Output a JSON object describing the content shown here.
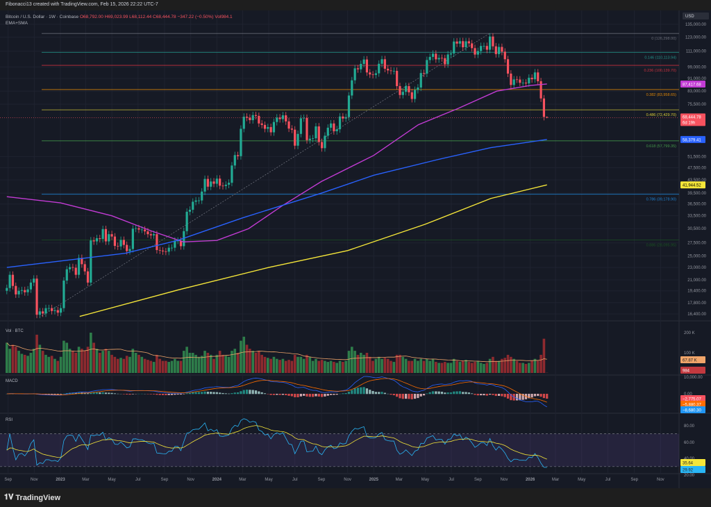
{
  "header": {
    "credit": "Fibonacci13 created with TradingView.com, Feb 15, 2026 22:22 UTC-7"
  },
  "legend": {
    "symbol": "Bitcoin / U.S. Dollar · 1W · Coinbase",
    "open": "O68,792.00",
    "high": "H69,023.99",
    "low": "L68,112.44",
    "close": "C68,444.78",
    "change": "−347.22 (−0.50%)",
    "volume": "Vol984.1",
    "indicators": "EMA+SMA"
  },
  "footer": {
    "brand": "TradingView"
  },
  "chart_data": {
    "type": "candlestick",
    "currency": "USD",
    "scale": "log",
    "ylim": [
      16000,
      140000
    ],
    "interval": "1W",
    "first_week": "2022-08-29",
    "x_tick_labels": [
      "Sep",
      "Nov",
      "2023",
      "Mar",
      "May",
      "Jul",
      "Sep",
      "Nov",
      "2024",
      "Mar",
      "May",
      "Jul",
      "Sep",
      "Nov",
      "2025",
      "Mar",
      "May",
      "Jul",
      "Sep",
      "Nov",
      "2026",
      "Mar",
      "May",
      "Jul",
      "Sep",
      "Nov"
    ],
    "y_ticks": [
      135000,
      123000,
      111000,
      99000,
      91000,
      83000,
      75500,
      51500,
      47500,
      43500,
      39500,
      36500,
      33500,
      30500,
      27500,
      25000,
      23000,
      21000,
      19400,
      17800,
      16400
    ],
    "y_tick_labels": [
      "135,000.00",
      "123,000.00",
      "111,000.00",
      "99,000.00",
      "91,000.00",
      "83,000.00",
      "75,500.00",
      "51,500.00",
      "47,500.00",
      "43,500.00",
      "39,500.00",
      "36,500.00",
      "33,500.00",
      "30,500.00",
      "27,500.00",
      "25,000.00",
      "23,000.00",
      "21,000.00",
      "19,400.00",
      "17,800.00",
      "16,400.00"
    ],
    "weekly_closes": [
      19800,
      21800,
      20100,
      18900,
      19400,
      19500,
      19200,
      19600,
      20600,
      21200,
      16300,
      16700,
      16450,
      17100,
      17100,
      16750,
      16850,
      16550,
      17100,
      20900,
      22700,
      23050,
      22950,
      21800,
      24650,
      23550,
      22350,
      20600,
      28000,
      27800,
      28450,
      28300,
      30400,
      27800,
      29300,
      28800,
      26900,
      26800,
      28100,
      27100,
      25900,
      26300,
      30500,
      30600,
      30300,
      30300,
      29900,
      29300,
      29050,
      29300,
      26100,
      26000,
      25850,
      25800,
      26550,
      26550,
      27950,
      27950,
      26850,
      29950,
      34500,
      35000,
      37100,
      37450,
      37450,
      39950,
      43800,
      41400,
      43000,
      42300,
      43900,
      41700,
      41600,
      42000,
      42600,
      48300,
      52100,
      51700,
      63100,
      68900,
      68400,
      67200,
      69700,
      69300,
      65600,
      64900,
      63100,
      63900,
      61500,
      66300,
      68500,
      67700,
      69600,
      66600,
      63200,
      62700,
      55800,
      60800,
      68100,
      68300,
      58100,
      58700,
      58900,
      64200,
      57300,
      54800,
      60000,
      63600,
      65600,
      62000,
      62900,
      69000,
      68000,
      68700,
      80400,
      89800,
      98000,
      97300,
      101200,
      104500,
      95100,
      93700,
      93400,
      94500,
      101300,
      104700,
      97700,
      96500,
      96100,
      96200,
      86100,
      80700,
      82600,
      86100,
      82300,
      78400,
      83700,
      85200,
      94700,
      94300,
      104100,
      106500,
      109000,
      104600,
      105700,
      105500,
      100900,
      108400,
      109200,
      119100,
      117300,
      119400,
      114200,
      119300,
      117500,
      113500,
      108300,
      111100,
      115300,
      115300,
      112200,
      123500,
      115000,
      108700,
      114500,
      110600,
      104700,
      94300,
      86800,
      90400,
      90300,
      88200,
      88300,
      87800,
      91500,
      90500,
      95100,
      89200,
      78700,
      68792,
      68444.78
    ],
    "last_candle": {
      "open": 68792.0,
      "high": 69023.99,
      "low": 68112.44,
      "close": 68444.78
    },
    "weekly_volume_k": [
      150,
      120,
      140,
      130,
      110,
      95,
      90,
      85,
      100,
      120,
      190,
      140,
      110,
      90,
      80,
      85,
      70,
      60,
      80,
      160,
      150,
      120,
      110,
      100,
      130,
      120,
      110,
      130,
      200,
      150,
      120,
      100,
      110,
      120,
      110,
      90,
      80,
      70,
      75,
      70,
      85,
      80,
      120,
      100,
      90,
      80,
      70,
      65,
      60,
      55,
      90,
      70,
      60,
      60,
      55,
      60,
      70,
      60,
      60,
      110,
      130,
      100,
      100,
      90,
      80,
      85,
      110,
      100,
      90,
      70,
      90,
      110,
      90,
      85,
      80,
      110,
      120,
      100,
      160,
      180,
      140,
      120,
      110,
      100,
      110,
      90,
      80,
      75,
      70,
      80,
      70,
      65,
      70,
      60,
      65,
      60,
      90,
      80,
      80,
      70,
      90,
      80,
      60,
      70,
      60,
      65,
      60,
      55,
      60,
      55,
      50,
      60,
      55,
      60,
      110,
      130,
      110,
      90,
      100,
      90,
      100,
      80,
      60,
      70,
      80,
      70,
      75,
      70,
      60,
      55,
      90,
      90,
      80,
      70,
      60,
      60,
      70,
      60,
      70,
      60,
      70,
      60,
      70,
      55,
      50,
      50,
      55,
      50,
      50,
      70,
      60,
      55,
      60,
      65,
      55,
      50,
      55,
      60,
      50,
      45,
      50,
      70,
      80,
      60,
      60,
      70,
      75,
      90,
      80,
      70,
      60,
      50,
      50,
      45,
      50,
      60,
      70,
      60,
      90,
      170,
      0.98
    ],
    "moving_averages": [
      {
        "color": "#c23bd4",
        "last": "87,417.68",
        "points": [
          [
            "2022-08-29",
            38500
          ],
          [
            "2023-01-01",
            36800
          ],
          [
            "2023-05-01",
            33500
          ],
          [
            "2023-08-01",
            30000
          ],
          [
            "2023-10-15",
            27700
          ],
          [
            "2024-01-01",
            28000
          ],
          [
            "2024-03-15",
            30500
          ],
          [
            "2024-06-01",
            36000
          ],
          [
            "2024-09-01",
            43000
          ],
          [
            "2025-01-01",
            52000
          ],
          [
            "2025-04-15",
            65000
          ],
          [
            "2025-07-15",
            73000
          ],
          [
            "2025-10-15",
            83000
          ],
          [
            "2026-01-01",
            86500
          ],
          [
            "2026-02-09",
            87417.68
          ]
        ]
      },
      {
        "color": "#2962ff",
        "last": "58,379.41",
        "points": [
          [
            "2022-08-29",
            23000
          ],
          [
            "2023-06-01",
            25500
          ],
          [
            "2023-10-01",
            28000
          ],
          [
            "2024-03-01",
            33000
          ],
          [
            "2024-09-01",
            39500
          ],
          [
            "2025-01-01",
            45000
          ],
          [
            "2025-06-01",
            50500
          ],
          [
            "2025-10-01",
            55000
          ],
          [
            "2026-02-09",
            58379.41
          ]
        ]
      },
      {
        "color": "#f5e639",
        "last": "41,944.52",
        "points": [
          [
            "2023-02-15",
            16100
          ],
          [
            "2023-10-01",
            19500
          ],
          [
            "2024-05-01",
            23000
          ],
          [
            "2024-11-01",
            26000
          ],
          [
            "2025-05-01",
            31500
          ],
          [
            "2025-10-01",
            38000
          ],
          [
            "2026-02-09",
            41944.52
          ]
        ]
      }
    ],
    "fibonacci": [
      {
        "label": "0 (126,298.00)",
        "value": 126298,
        "color": "#787b86"
      },
      {
        "label": "0.146 (110,113.94)",
        "value": 110113.94,
        "color": "#26a69a"
      },
      {
        "label": "0.236 (100,139.70)",
        "value": 100139.7,
        "color": "#f23645"
      },
      {
        "label": "0.382 (83,958.65)",
        "value": 83958.65,
        "color": "#ff9800"
      },
      {
        "label": "0.486 (72,429.70)",
        "value": 72429.7,
        "color": "#f5e639"
      },
      {
        "label": "0.618 (57,799.35)",
        "value": 57799.35,
        "color": "#4caf50"
      },
      {
        "label": "0.786 (39,178.90)",
        "value": 39178.9,
        "color": "#2196f3"
      },
      {
        "label": "0.886 (28,095.95)",
        "value": 28095.95,
        "color": "#1b5e20"
      }
    ],
    "price_label": {
      "value": "68,444.78",
      "countdown": "6d 19h",
      "color": "#f7525f"
    },
    "volume_pane": {
      "title": "Vol · BTC",
      "ticks": [
        "200 K",
        "100 K"
      ],
      "ma_label": "67.87 K",
      "vol_label": "984"
    },
    "macd_pane": {
      "title": "MACD",
      "ticks": [
        "10,000.00",
        "0.00"
      ],
      "labels": [
        {
          "text": "−2,775.07",
          "color": "#f7525f"
        },
        {
          "text": "−5,880.37",
          "color": "#ff6d00"
        },
        {
          "text": "−8,680.30",
          "color": "#2196f3"
        }
      ]
    },
    "rsi_pane": {
      "title": "RSI",
      "ticks": [
        "80.00",
        "60.00",
        "40.00",
        "20.00"
      ],
      "labels": [
        {
          "text": "35.64",
          "color": "#f5e639"
        },
        {
          "text": "29.92",
          "color": "#29b6f6"
        }
      ]
    }
  }
}
